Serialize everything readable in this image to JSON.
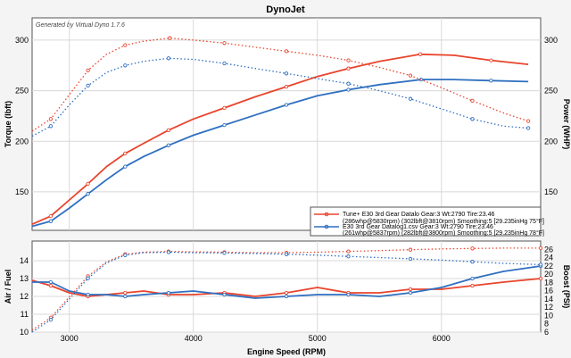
{
  "chart_data": [
    {
      "type": "line",
      "title": "DynoJet",
      "subtitle": "Generated by Virtual Dyno 1.7.6",
      "xlabel": "Engine Speed (RPM)",
      "ylabel_left": "Torque (lbft)",
      "ylabel_right": "Power (WHP)",
      "xlim": [
        2700,
        6800
      ],
      "ylim": [
        112,
        322
      ],
      "x_ticks": [
        3000,
        4000,
        5000,
        6000
      ],
      "y_ticks": [
        150,
        200,
        250,
        300
      ],
      "right_ticks": [
        150,
        200,
        250,
        300
      ],
      "grid": true,
      "legend_position": "lower-right",
      "colors": {
        "run1": "#e8442c",
        "run2": "#2f6fc0"
      },
      "legend": [
        {
          "line1": "Tune+ E30 3rd Gear Datalo Gear:3 Wt:2790 Tire:23.46",
          "line2": "(286whp@5830rpm) (302lbft@3810rpm) Smoothing:5 [29.235inHg 75°F]"
        },
        {
          "line1": "E30 3rd Gear Datalog1.csv Gear:3 Wt:2790 Tire:23.46",
          "line2": "(261whp@5837rpm) (282lbft@3800rpm) Smoothing:5 [29.235inHg 78°F]"
        }
      ],
      "series": [
        {
          "run": "run1",
          "measure": "power",
          "style": "solid",
          "x": [
            2700,
            2850,
            3000,
            3150,
            3300,
            3450,
            3600,
            3800,
            4000,
            4250,
            4500,
            4750,
            5000,
            5250,
            5500,
            5830,
            6100,
            6400,
            6700
          ],
          "y": [
            118,
            126,
            142,
            158,
            175,
            188,
            198,
            211,
            222,
            233,
            244,
            254,
            264,
            272,
            279,
            286,
            285,
            280,
            276
          ]
        },
        {
          "run": "run2",
          "measure": "power",
          "style": "solid",
          "x": [
            2700,
            2850,
            3000,
            3150,
            3300,
            3450,
            3600,
            3800,
            4000,
            4250,
            4500,
            4750,
            5000,
            5250,
            5500,
            5837,
            6100,
            6400,
            6700
          ],
          "y": [
            116,
            121,
            134,
            148,
            162,
            175,
            185,
            196,
            206,
            216,
            226,
            236,
            245,
            251,
            256,
            261,
            261,
            260,
            259
          ]
        },
        {
          "run": "run1",
          "measure": "torque",
          "style": "dotted",
          "x": [
            2700,
            2850,
            3000,
            3150,
            3300,
            3450,
            3600,
            3810,
            4000,
            4250,
            4500,
            4750,
            5000,
            5250,
            5500,
            5750,
            6000,
            6250,
            6500,
            6700
          ],
          "y": [
            210,
            222,
            246,
            270,
            286,
            295,
            299,
            302,
            300,
            297,
            293,
            289,
            285,
            280,
            273,
            265,
            253,
            240,
            228,
            220
          ]
        },
        {
          "run": "run2",
          "measure": "torque",
          "style": "dotted",
          "x": [
            2700,
            2850,
            3000,
            3150,
            3300,
            3450,
            3600,
            3800,
            4000,
            4250,
            4500,
            4750,
            5000,
            5250,
            5500,
            5750,
            6000,
            6250,
            6500,
            6700
          ],
          "y": [
            205,
            215,
            236,
            255,
            268,
            275,
            279,
            282,
            281,
            277,
            272,
            267,
            262,
            257,
            250,
            242,
            232,
            222,
            215,
            213
          ]
        }
      ]
    },
    {
      "type": "line",
      "xlabel": "Engine Speed (RPM)",
      "ylabel_left": "Air / Fuel",
      "ylabel_right": "Boost (PSI)",
      "xlim": [
        2700,
        6800
      ],
      "ylim": [
        10,
        15.1
      ],
      "right_range": [
        6,
        28
      ],
      "x_ticks": [
        3000,
        4000,
        5000,
        6000
      ],
      "y_ticks": [
        10,
        11,
        12,
        13,
        14
      ],
      "right_ticks": [
        6,
        8,
        10,
        12,
        14,
        16,
        18,
        20,
        22,
        24,
        26
      ],
      "grid": true,
      "series": [
        {
          "run": "run1",
          "measure": "air_fuel",
          "style": "solid",
          "x": [
            2700,
            2850,
            3000,
            3150,
            3300,
            3450,
            3600,
            3800,
            4000,
            4250,
            4500,
            4750,
            5000,
            5250,
            5500,
            5750,
            6000,
            6250,
            6500,
            6800
          ],
          "y": [
            12.9,
            12.6,
            12.2,
            12.0,
            12.1,
            12.2,
            12.3,
            12.1,
            12.1,
            12.2,
            12.0,
            12.2,
            12.5,
            12.2,
            12.2,
            12.4,
            12.4,
            12.6,
            12.8,
            13.0
          ]
        },
        {
          "run": "run2",
          "measure": "air_fuel",
          "style": "solid",
          "x": [
            2700,
            2850,
            3000,
            3150,
            3300,
            3450,
            3600,
            3800,
            4000,
            4250,
            4500,
            4750,
            5000,
            5250,
            5500,
            5750,
            6000,
            6250,
            6500,
            6800
          ],
          "y": [
            12.8,
            12.8,
            12.3,
            12.1,
            12.1,
            12.0,
            12.1,
            12.2,
            12.3,
            12.1,
            11.9,
            12.0,
            12.1,
            12.1,
            12.0,
            12.2,
            12.5,
            13.0,
            13.4,
            13.7
          ]
        },
        {
          "run": "run1",
          "measure": "boost",
          "style": "dotted",
          "x": [
            2700,
            2850,
            3000,
            3150,
            3300,
            3450,
            3600,
            3800,
            4000,
            4250,
            4500,
            4750,
            5000,
            5250,
            5500,
            5750,
            6000,
            6250,
            6500,
            6800
          ],
          "y": [
            6.5,
            9.5,
            14.5,
            19.5,
            23.0,
            24.8,
            25.3,
            25.5,
            25.4,
            25.3,
            25.2,
            25.2,
            25.3,
            25.5,
            25.7,
            25.9,
            26.1,
            26.2,
            26.3,
            26.3
          ]
        },
        {
          "run": "run2",
          "measure": "boost",
          "style": "dotted",
          "x": [
            2700,
            2850,
            3000,
            3150,
            3300,
            3450,
            3600,
            3800,
            4000,
            4250,
            4500,
            4750,
            5000,
            5250,
            5500,
            5750,
            6000,
            6250,
            6500,
            6800
          ],
          "y": [
            6.0,
            9.0,
            14.0,
            19.0,
            22.7,
            24.6,
            25.2,
            25.3,
            25.2,
            25.1,
            25.0,
            24.8,
            24.6,
            24.3,
            24.0,
            23.7,
            23.4,
            23.0,
            22.6,
            22.3
          ]
        }
      ]
    }
  ]
}
